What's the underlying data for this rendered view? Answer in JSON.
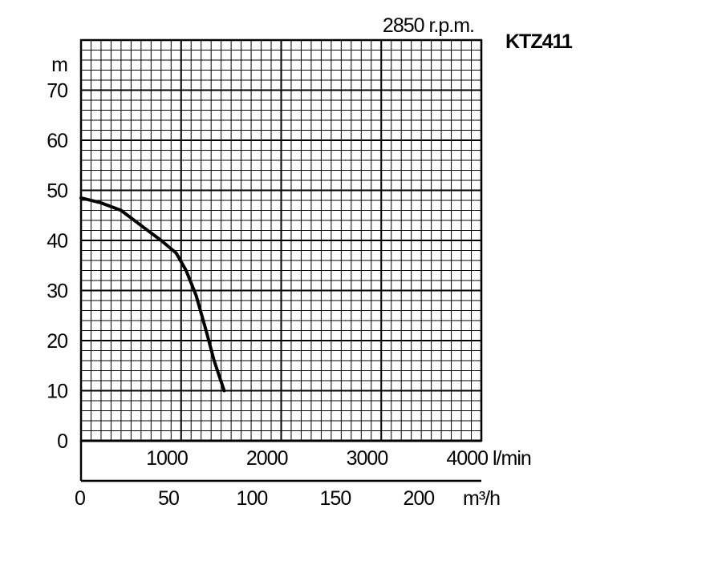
{
  "chart_data": {
    "type": "line",
    "title": "KTZ411",
    "subtitle": "2850 r.p.m.",
    "ylabel": "m",
    "xlabel": "l/min",
    "x2label": "m³/h",
    "xlim": [
      0,
      4000
    ],
    "ylim": [
      0,
      80
    ],
    "y_ticks": [
      0,
      10,
      20,
      30,
      40,
      50,
      60,
      70
    ],
    "x_ticks": [
      1000,
      2000,
      3000,
      4000
    ],
    "x_tick_labels": [
      "1000",
      "2000",
      "3000",
      "4000"
    ],
    "x2_ticks": [
      0,
      50,
      100,
      150,
      200
    ],
    "grid": true,
    "legend": "none",
    "series": [
      {
        "x": [
          0,
          200,
          400,
          600,
          800,
          950,
          1050,
          1150,
          1250,
          1330,
          1430
        ],
        "y": [
          48.5,
          47.5,
          46,
          43,
          40,
          37.5,
          34,
          29,
          22,
          16,
          10
        ]
      }
    ]
  }
}
